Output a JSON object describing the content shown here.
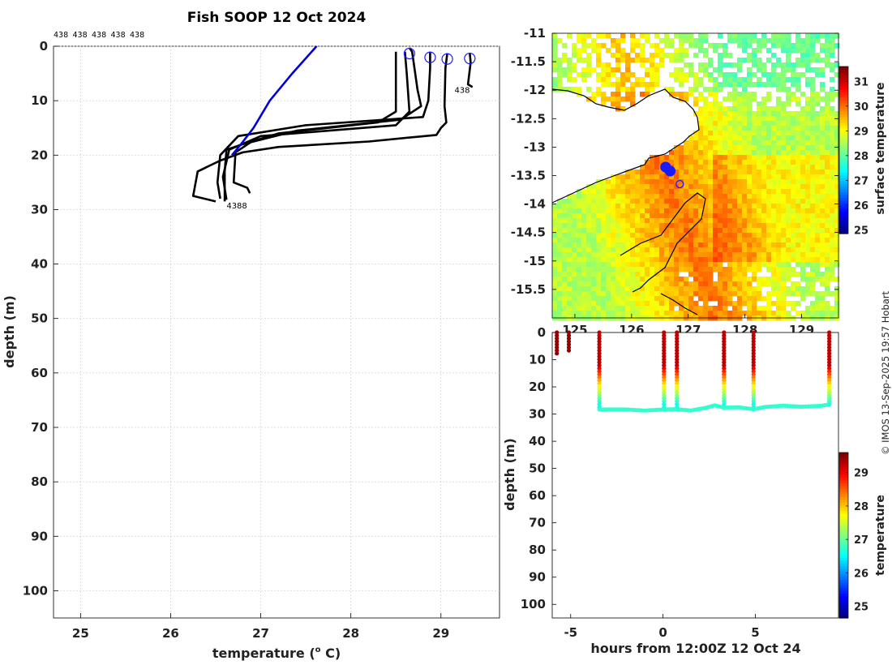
{
  "title": "Fish SOOP 12 Oct 2024",
  "watermark": "© IMOS 13-Sep-2025 19:57 Hobart",
  "chart_data": [
    {
      "id": "profiles",
      "type": "line",
      "xlabel": "temperature (",
      "xlabel_sup": "o",
      "xlabel_unit": " C)",
      "ylabel": "depth (m)",
      "xlim": [
        24.7,
        29.65
      ],
      "ylim": [
        105,
        0
      ],
      "xticks": [
        25,
        26,
        27,
        28,
        29
      ],
      "yticks": [
        0,
        10,
        20,
        30,
        40,
        50,
        60,
        70,
        80,
        90,
        100
      ],
      "grid": true,
      "top_labels": [
        "438",
        "438",
        "438",
        "438",
        "438"
      ],
      "reference_profile": {
        "name": "climatology",
        "color": "#0000dd",
        "points": [
          [
            27.62,
            0
          ],
          [
            27.35,
            5
          ],
          [
            27.1,
            10
          ],
          [
            26.92,
            15
          ],
          [
            26.78,
            18
          ],
          [
            26.68,
            20
          ]
        ]
      },
      "profiles": [
        {
          "start": [
            28.65,
            0.3
          ],
          "points": [
            [
              28.65,
              0.3
            ],
            [
              28.68,
              1
            ],
            [
              28.74,
              8
            ],
            [
              28.78,
              11
            ],
            [
              28.55,
              13.5
            ],
            [
              27.4,
              15.5
            ],
            [
              26.8,
              18
            ],
            [
              26.62,
              19
            ],
            [
              26.6,
              23
            ],
            [
              26.6,
              28.5
            ]
          ]
        },
        {
          "start": [
            28.88,
            1
          ],
          "points": [
            [
              28.88,
              1
            ],
            [
              28.88,
              4
            ],
            [
              28.86,
              10
            ],
            [
              28.8,
              13
            ],
            [
              27.5,
              14.5
            ],
            [
              26.75,
              16.5
            ],
            [
              26.55,
              20
            ],
            [
              26.52,
              25
            ],
            [
              26.55,
              28
            ]
          ]
        },
        {
          "start": [
            29.07,
            1.3
          ],
          "points": [
            [
              29.07,
              1.3
            ],
            [
              29.05,
              4
            ],
            [
              29.04,
              11
            ],
            [
              29.06,
              14
            ],
            [
              29.0,
              15
            ],
            [
              28.95,
              16.3
            ],
            [
              28.2,
              17.5
            ],
            [
              27.2,
              18.5
            ],
            [
              26.8,
              19.5
            ],
            [
              26.55,
              21
            ],
            [
              26.3,
              23
            ],
            [
              26.25,
              27.5
            ],
            [
              26.5,
              28.5
            ]
          ]
        },
        {
          "start": [
            29.32,
            1.2
          ],
          "points": [
            [
              29.32,
              1.2
            ],
            [
              29.33,
              3
            ],
            [
              29.3,
              7
            ],
            [
              29.35,
              7.5
            ]
          ]
        },
        {
          "start": [
            28.5,
            1
          ],
          "points": [
            [
              28.5,
              1
            ],
            [
              28.5,
              5
            ],
            [
              28.5,
              12
            ],
            [
              28.3,
              14
            ],
            [
              27.2,
              16
            ],
            [
              26.9,
              17.5
            ],
            [
              26.72,
              19.5
            ],
            [
              26.7,
              25
            ],
            [
              26.85,
              26
            ],
            [
              26.88,
              27
            ]
          ]
        },
        {
          "start": [
            28.6,
            1
          ],
          "points": [
            [
              28.6,
              1
            ],
            [
              28.62,
              5
            ],
            [
              28.65,
              12
            ],
            [
              28.5,
              14.5
            ],
            [
              27.0,
              16.5
            ],
            [
              26.65,
              19
            ],
            [
              26.58,
              24
            ],
            [
              26.62,
              28.2
            ]
          ]
        }
      ],
      "markers": [
        [
          28.65,
          0.3
        ],
        [
          28.88,
          1
        ],
        [
          29.07,
          1.3
        ],
        [
          29.32,
          1.2
        ]
      ],
      "annotations": [
        {
          "text": "438",
          "x": 29.15,
          "y": 8
        },
        {
          "text": "4388",
          "x": 26.62,
          "y": 29.2
        }
      ]
    },
    {
      "id": "map",
      "type": "heatmap",
      "xlim": [
        124.6,
        129.65
      ],
      "ylim": [
        -16,
        -11
      ],
      "xticks": [
        125,
        126,
        127,
        128,
        129
      ],
      "yticks": [
        -11,
        -11.5,
        -12,
        -12.5,
        -13,
        -13.5,
        -14,
        -14.5,
        -15,
        -15.5
      ],
      "colorbar_label": "surface temperature",
      "colorbar_ticks": [
        25,
        26,
        27,
        28,
        29,
        30,
        31
      ],
      "colorbar_range": [
        24.85,
        31.6
      ],
      "track": [
        [
          126.6,
          -13.35
        ],
        [
          126.68,
          -13.42
        ],
        [
          126.85,
          -13.65
        ]
      ]
    },
    {
      "id": "section",
      "type": "scatter",
      "xlabel": "hours from 12:00Z 12 Oct 24",
      "ylabel": "depth (m)",
      "xlim": [
        -6,
        9.5
      ],
      "ylim": [
        105,
        0
      ],
      "xticks": [
        -5,
        0,
        5
      ],
      "yticks": [
        0,
        10,
        20,
        30,
        40,
        50,
        60,
        70,
        80,
        90,
        100
      ],
      "colorbar_label": "temperature",
      "colorbar_ticks": [
        25,
        26,
        27,
        28,
        29
      ],
      "colorbar_range": [
        24.65,
        29.6
      ],
      "casts": [
        {
          "hours": -5.75,
          "max_depth": 8
        },
        {
          "hours": -5.1,
          "max_depth": 7
        },
        {
          "hours": -3.45,
          "max_depth": 28
        },
        {
          "hours": 0.05,
          "max_depth": 28
        },
        {
          "hours": 0.75,
          "max_depth": 28
        },
        {
          "hours": 3.3,
          "max_depth": 27.5
        },
        {
          "hours": 4.9,
          "max_depth": 28
        },
        {
          "hours": 9.0,
          "max_depth": 26.5
        }
      ],
      "bottom_track": [
        [
          -3.45,
          28.3
        ],
        [
          -2,
          28.3
        ],
        [
          -1,
          28.7
        ],
        [
          0,
          28.3
        ],
        [
          0.75,
          28.2
        ],
        [
          1.5,
          28.7
        ],
        [
          2.3,
          27.7
        ],
        [
          2.8,
          26.8
        ],
        [
          3.3,
          27.6
        ],
        [
          4.1,
          27.5
        ],
        [
          4.9,
          28.2
        ],
        [
          5.5,
          27.4
        ],
        [
          6.5,
          26.9
        ],
        [
          7.5,
          27.3
        ],
        [
          8.5,
          27.0
        ],
        [
          9.0,
          26.5
        ]
      ]
    }
  ]
}
